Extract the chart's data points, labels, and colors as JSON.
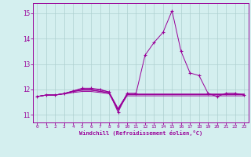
{
  "xlabel": "Windchill (Refroidissement éolien,°C)",
  "background_color": "#d4efef",
  "grid_color": "#aed0d0",
  "line_color": "#990099",
  "xlim": [
    -0.5,
    23.5
  ],
  "ylim": [
    10.7,
    15.4
  ],
  "yticks": [
    11,
    12,
    13,
    14,
    15
  ],
  "xticks": [
    0,
    1,
    2,
    3,
    4,
    5,
    6,
    7,
    8,
    9,
    10,
    11,
    12,
    13,
    14,
    15,
    16,
    17,
    18,
    19,
    20,
    21,
    22,
    23
  ],
  "series_no_marker": [
    [
      11.72,
      11.78,
      11.78,
      11.82,
      11.88,
      11.92,
      11.92,
      11.88,
      11.83,
      11.18,
      11.75,
      11.75,
      11.75,
      11.75,
      11.75,
      11.75,
      11.75,
      11.75,
      11.75,
      11.75,
      11.75,
      11.75,
      11.75,
      11.75
    ],
    [
      11.72,
      11.78,
      11.78,
      11.84,
      11.92,
      11.97,
      11.97,
      11.92,
      11.87,
      11.2,
      11.8,
      11.8,
      11.8,
      11.8,
      11.8,
      11.8,
      11.8,
      11.8,
      11.8,
      11.8,
      11.8,
      11.8,
      11.8,
      11.8
    ],
    [
      11.72,
      11.78,
      11.78,
      11.84,
      11.92,
      11.98,
      11.98,
      11.93,
      11.87,
      11.22,
      11.8,
      11.8,
      11.8,
      11.8,
      11.8,
      11.8,
      11.8,
      11.8,
      11.8,
      11.8,
      11.8,
      11.8,
      11.8,
      11.8
    ],
    [
      11.72,
      11.78,
      11.78,
      11.84,
      11.94,
      12.02,
      12.02,
      11.98,
      11.9,
      11.25,
      11.82,
      11.82,
      11.82,
      11.82,
      11.82,
      11.82,
      11.82,
      11.82,
      11.82,
      11.82,
      11.82,
      11.82,
      11.82,
      11.82
    ]
  ],
  "main_series": [
    11.72,
    11.78,
    11.78,
    11.84,
    11.94,
    12.05,
    12.05,
    12.0,
    11.9,
    11.1,
    11.85,
    11.85,
    13.35,
    13.85,
    14.25,
    15.1,
    13.5,
    12.65,
    12.55,
    11.85,
    11.72,
    11.85,
    11.85,
    11.78
  ]
}
